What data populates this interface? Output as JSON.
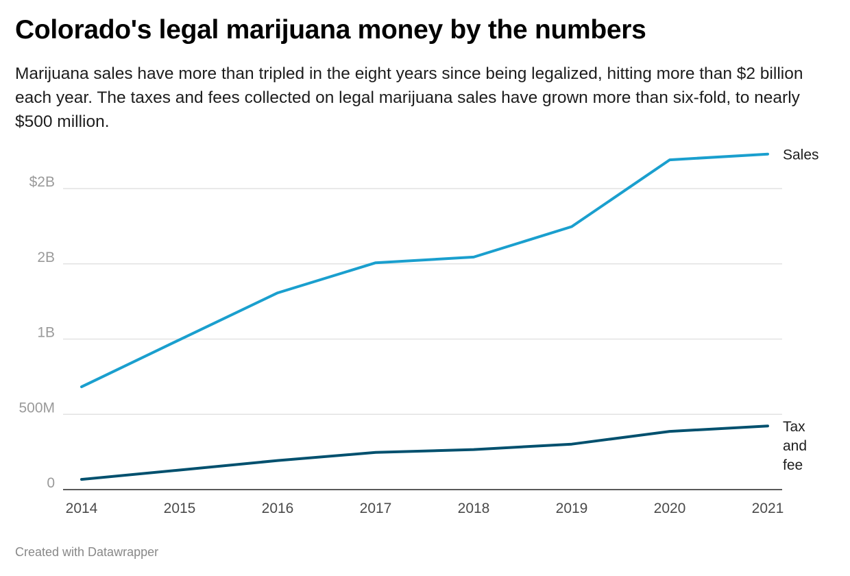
{
  "title": "Colorado's legal marijuana money by the numbers",
  "subtitle": "Marijuana sales have more than tripled in the eight years since being legalized, hitting more than $2 billion each year. The taxes and fees collected on legal marijuana sales have grown more than six-fold, to nearly $500 million.",
  "footer": "Created with Datawrapper",
  "colors": {
    "sales": "#1a9fce",
    "tax": "#00506e",
    "grid": "#e2e2e2",
    "axis": "#222222"
  },
  "chart_data": {
    "type": "line",
    "x": [
      2014,
      2015,
      2016,
      2017,
      2018,
      2019,
      2020,
      2021
    ],
    "x_tick_labels": [
      "2014",
      "2015",
      "2016",
      "2017",
      "2018",
      "2019",
      "2020",
      "2021"
    ],
    "y_ticks": [
      0,
      500000000,
      1000000000,
      1500000000,
      2000000000
    ],
    "y_tick_labels": [
      "0",
      "500M",
      "1B",
      "2B",
      "$2B"
    ],
    "ylim": [
      0,
      2200000000
    ],
    "grid": true,
    "series": [
      {
        "name": "Sales",
        "label_lines": [
          "Sales"
        ],
        "color": "#1a9fce",
        "values": [
          683000000,
          996000000,
          1307000000,
          1507000000,
          1545000000,
          1747000000,
          2191000000,
          2229000000
        ]
      },
      {
        "name": "Tax and fee",
        "label_lines": [
          "Tax",
          "and",
          "fee"
        ],
        "color": "#00506e",
        "values": [
          68000000,
          130000000,
          193000000,
          247000000,
          266000000,
          302000000,
          387000000,
          423000000
        ]
      }
    ]
  }
}
